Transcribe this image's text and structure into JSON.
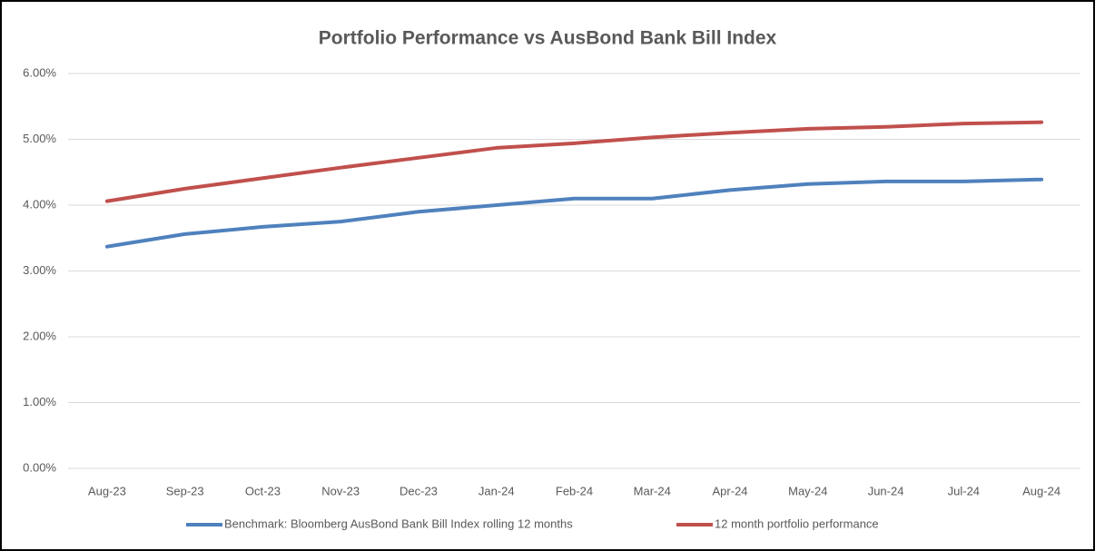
{
  "chart_data": {
    "type": "line",
    "title": "Portfolio Performance vs AusBond Bank Bill Index",
    "categories": [
      "Aug-23",
      "Sep-23",
      "Oct-23",
      "Nov-23",
      "Dec-23",
      "Jan-24",
      "Feb-24",
      "Mar-24",
      "Apr-24",
      "May-24",
      "Jun-24",
      "Jul-24",
      "Aug-24"
    ],
    "series": [
      {
        "name": "Benchmark: Bloomberg AusBond Bank Bill Index rolling 12 months",
        "color": "#4f81bd",
        "values": [
          3.37,
          3.56,
          3.67,
          3.75,
          3.9,
          4.0,
          4.1,
          4.1,
          4.23,
          4.32,
          4.36,
          4.36,
          4.39
        ]
      },
      {
        "name": "12 month portfolio performance",
        "color": "#c0504d",
        "values": [
          4.06,
          4.25,
          4.41,
          4.57,
          4.72,
          4.87,
          4.94,
          5.03,
          5.1,
          5.16,
          5.19,
          5.24,
          5.26
        ]
      }
    ],
    "ylim": [
      0,
      6
    ],
    "yticks": [
      {
        "value": 0,
        "label": "0.00%"
      },
      {
        "value": 1,
        "label": "1.00%"
      },
      {
        "value": 2,
        "label": "2.00%"
      },
      {
        "value": 3,
        "label": "3.00%"
      },
      {
        "value": 4,
        "label": "4.00%"
      },
      {
        "value": 5,
        "label": "5.00%"
      },
      {
        "value": 6,
        "label": "6.00%"
      }
    ],
    "grid": true,
    "legend": "bottom"
  }
}
